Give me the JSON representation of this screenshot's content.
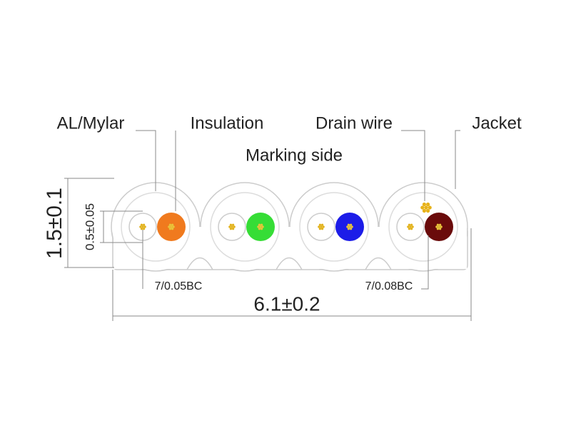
{
  "callouts": [
    "AL/Mylar",
    "Insulation",
    "Drain wire",
    "Jacket"
  ],
  "marking_side": "Marking side",
  "dimensions": {
    "height": "1.5±0.1",
    "conductor": "0.5±0.05",
    "width": "6.1±0.2"
  },
  "conductor_specs": [
    "7/0.05BC",
    "7/0.08BC"
  ]
}
